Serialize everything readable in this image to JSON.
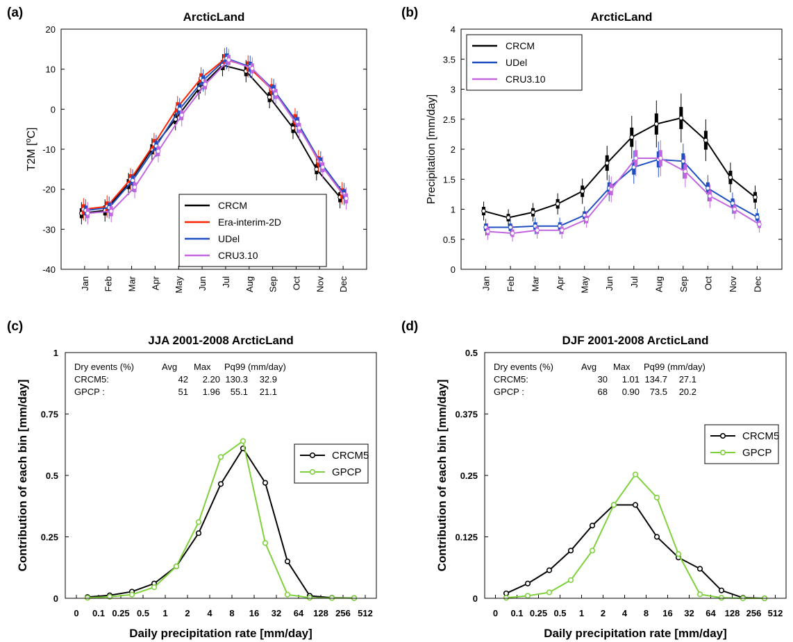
{
  "colors": {
    "CRCM": "#000000",
    "Era-interim-2D": "#ff2200",
    "UDel": "#1f4fbf",
    "CRU3.10": "#c266e0",
    "CRCM5": "#000000",
    "GPCP": "#7fd13b"
  },
  "chart_data": [
    {
      "panel": "(a)",
      "type": "line",
      "title": "ArcticLand",
      "xlabel": "",
      "ylabel": "T2M [",
      "ylabel_sup": "o",
      "ylabel_end": "C]",
      "categories": [
        "Jan",
        "Feb",
        "Mar",
        "Apr",
        "May",
        "Jun",
        "Jul",
        "Aug",
        "Sep",
        "Oct",
        "Nov",
        "Dec"
      ],
      "ylim": [
        -40,
        20
      ],
      "yticks": [
        -40,
        -30,
        -20,
        -10,
        0,
        10,
        20
      ],
      "legend_position": "bottom-right",
      "series": [
        {
          "name": "CRCM",
          "values": [
            -26,
            -25.3,
            -18.7,
            -10,
            -2.5,
            5.2,
            11,
            9.5,
            3,
            -4.7,
            -15,
            -22
          ]
        },
        {
          "name": "Era-interim-2D",
          "values": [
            -25,
            -24.3,
            -17.5,
            -8.7,
            0.5,
            7.7,
            12.5,
            10.7,
            5,
            -2.5,
            -13,
            -21
          ]
        },
        {
          "name": "UDel",
          "values": [
            -25.3,
            -24.6,
            -17.8,
            -9.2,
            0,
            7.2,
            12.7,
            10.6,
            4.8,
            -3.2,
            -13.3,
            -21.2
          ]
        },
        {
          "name": "CRU3.10",
          "values": [
            -26,
            -25.5,
            -19.5,
            -10.5,
            -1.5,
            6.2,
            12.3,
            10.2,
            3.8,
            -4.7,
            -14.5,
            -22.3
          ]
        }
      ]
    },
    {
      "panel": "(b)",
      "type": "line",
      "title": "ArcticLand",
      "xlabel": "",
      "ylabel": "Precipitation [mm/day]",
      "categories": [
        "Jan",
        "Feb",
        "Mar",
        "Apr",
        "May",
        "Jun",
        "Jul",
        "Aug",
        "Sep",
        "Oct",
        "Nov",
        "Dec"
      ],
      "ylim": [
        0,
        4
      ],
      "yticks": [
        0,
        0.5,
        1,
        1.5,
        2,
        2.5,
        3,
        3.5,
        4
      ],
      "legend_position": "top-left",
      "series": [
        {
          "name": "CRCM",
          "values": [
            0.97,
            0.86,
            0.95,
            1.09,
            1.3,
            1.77,
            2.2,
            2.42,
            2.52,
            2.15,
            1.53,
            1.2
          ]
        },
        {
          "name": "UDel",
          "values": [
            0.7,
            0.7,
            0.72,
            0.72,
            0.9,
            1.35,
            1.7,
            1.83,
            1.8,
            1.35,
            1.1,
            0.87
          ]
        },
        {
          "name": "CRU3.10",
          "values": [
            0.63,
            0.6,
            0.65,
            0.65,
            0.83,
            1.33,
            1.85,
            1.85,
            1.63,
            1.22,
            1.0,
            0.75
          ]
        }
      ]
    },
    {
      "panel": "(c)",
      "type": "line",
      "title": "JJA 2001-2008 ArcticLand",
      "xlabel": "Daily precipitation rate [mm/day]",
      "ylabel": "Contribution of each bin [mm/day]",
      "x_tick_labels": [
        "0",
        "0.1",
        "0.25",
        "0.5",
        "1",
        "2",
        "4",
        "8",
        "16",
        "32",
        "64",
        "128",
        "256",
        "512"
      ],
      "ylim": [
        0,
        1
      ],
      "y_tick_labels": [
        "0",
        "0.25",
        "0.5",
        "0.75",
        "1"
      ],
      "legend_position": "right",
      "stats_table": {
        "header": [
          "Dry events (%)",
          "Avg",
          "Max",
          "Pq99 (mm/day)"
        ],
        "rows": [
          [
            "CRCM5:",
            "42",
            "2.20",
            "130.3",
            "32.9"
          ],
          [
            "GPCP :",
            "51",
            "1.96",
            "55.1",
            "21.1"
          ]
        ]
      },
      "series": [
        {
          "name": "CRCM5",
          "values": [
            0.005,
            0.012,
            0.027,
            0.06,
            0.13,
            0.265,
            0.465,
            0.61,
            0.47,
            0.15,
            0.01,
            0.002,
            0.001
          ]
        },
        {
          "name": "GPCP",
          "values": [
            0.002,
            0.006,
            0.015,
            0.045,
            0.13,
            0.31,
            0.575,
            0.64,
            0.225,
            0.015,
            0.002,
            0.001,
            0.001
          ]
        }
      ]
    },
    {
      "panel": "(d)",
      "type": "line",
      "title": "DJF 2001-2008 ArcticLand",
      "xlabel": "Daily precipitation rate [mm/day]",
      "ylabel": "Contribution of each bin [mm/day]",
      "x_tick_labels": [
        "0",
        "0.1",
        "0.25",
        "0.5",
        "1",
        "2",
        "4",
        "8",
        "16",
        "32",
        "64",
        "128",
        "256",
        "512"
      ],
      "ylim": [
        0,
        0.5
      ],
      "y_tick_labels": [
        "0",
        "0.125",
        "0.25",
        "0.375",
        "0.5"
      ],
      "legend_position": "right",
      "stats_table": {
        "header": [
          "Dry events (%)",
          "Avg",
          "Max",
          "Pq99 (mm/day)"
        ],
        "rows": [
          [
            "CRCM5:",
            "30",
            "1.01",
            "134.7",
            "27.1"
          ],
          [
            "GPCP :",
            "68",
            "0.90",
            "73.5",
            "20.2"
          ]
        ]
      },
      "series": [
        {
          "name": "CRCM5",
          "values": [
            0.01,
            0.03,
            0.057,
            0.097,
            0.148,
            0.19,
            0.19,
            0.125,
            0.083,
            0.06,
            0.016,
            0.001,
            0.0
          ]
        },
        {
          "name": "GPCP",
          "values": [
            0.001,
            0.005,
            0.012,
            0.037,
            0.097,
            0.19,
            0.252,
            0.205,
            0.09,
            0.008,
            0.001,
            0.0,
            0.0
          ]
        }
      ]
    }
  ]
}
